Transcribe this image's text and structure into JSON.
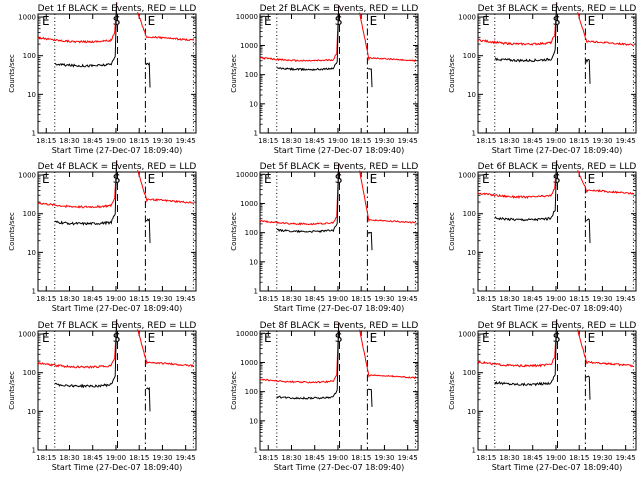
{
  "chart_data": [
    {
      "type": "line",
      "title": "Det 1f BLACK = Events, RED = LLD",
      "xlabel": "Start Time (27-Dec-07 18:09:40)",
      "ylabel": "Counts/sec",
      "xticks": [
        "18:15",
        "18:30",
        "18:45",
        "19:00",
        "18:15",
        "19:30",
        "19:45"
      ],
      "yticks": [
        "1",
        "10",
        "100",
        "1000"
      ],
      "ylim": [
        1,
        1200
      ],
      "yscale": "log",
      "markers": [
        "E",
        "S",
        "E"
      ],
      "series": [
        {
          "name": "RED = LLD",
          "color": "#ff0000",
          "pre_level": 230,
          "post_level": 250
        },
        {
          "name": "BLACK = Events",
          "color": "#000000",
          "pre_level": 55,
          "post_level": 60
        }
      ]
    },
    {
      "type": "line",
      "title": "Det 2f BLACK = Events, RED = LLD",
      "xlabel": "Start Time (27-Dec-07 18:09:40)",
      "ylabel": "Counts/sec",
      "xticks": [
        "18:15",
        "18:30",
        "18:45",
        "19:00",
        "18:15",
        "19:30",
        "19:45"
      ],
      "yticks": [
        "1",
        "10",
        "100",
        "1000",
        "10000"
      ],
      "ylim": [
        1,
        12000
      ],
      "yscale": "log",
      "markers": [
        "E",
        "S",
        "E"
      ],
      "series": [
        {
          "name": "RED = LLD",
          "color": "#ff0000",
          "pre_level": 300,
          "post_level": 300
        },
        {
          "name": "BLACK = Events",
          "color": "#000000",
          "pre_level": 150,
          "post_level": 150
        }
      ]
    },
    {
      "type": "line",
      "title": "Det 3f BLACK = Events, RED = LLD",
      "xlabel": "Start Time (27-Dec-07 18:09:40)",
      "ylabel": "Counts/sec",
      "xticks": [
        "18:15",
        "18:30",
        "18:45",
        "19:00",
        "18:15",
        "19:30",
        "19:45"
      ],
      "yticks": [
        "1",
        "10",
        "100",
        "1000"
      ],
      "ylim": [
        1,
        1200
      ],
      "yscale": "log",
      "markers": [
        "E",
        "S",
        "E"
      ],
      "series": [
        {
          "name": "RED = LLD",
          "color": "#ff0000",
          "pre_level": 200,
          "post_level": 190
        },
        {
          "name": "BLACK = Events",
          "color": "#000000",
          "pre_level": 75,
          "post_level": 75
        }
      ]
    },
    {
      "type": "line",
      "title": "Det 4f BLACK = Events, RED = LLD",
      "xlabel": "Start Time (27-Dec-07 18:09:40)",
      "ylabel": "Counts/sec",
      "xticks": [
        "18:15",
        "18:30",
        "18:45",
        "19:00",
        "18:15",
        "19:30",
        "19:45"
      ],
      "yticks": [
        "1",
        "10",
        "100",
        "1000"
      ],
      "ylim": [
        1,
        1200
      ],
      "yscale": "log",
      "markers": [
        "E",
        "S",
        "E"
      ],
      "series": [
        {
          "name": "RED = LLD",
          "color": "#ff0000",
          "pre_level": 150,
          "post_level": 190
        },
        {
          "name": "BLACK = Events",
          "color": "#000000",
          "pre_level": 55,
          "post_level": 70
        }
      ]
    },
    {
      "type": "line",
      "title": "Det 5f BLACK = Events, RED = LLD",
      "xlabel": "Start Time (27-Dec-07 18:09:40)",
      "ylabel": "Counts/sec",
      "xticks": [
        "18:15",
        "18:30",
        "18:45",
        "19:00",
        "18:15",
        "19:30",
        "19:45"
      ],
      "yticks": [
        "1",
        "10",
        "100",
        "1000",
        "10000"
      ],
      "ylim": [
        1,
        12000
      ],
      "yscale": "log",
      "markers": [
        "E",
        "S",
        "E"
      ],
      "series": [
        {
          "name": "RED = LLD",
          "color": "#ff0000",
          "pre_level": 200,
          "post_level": 220
        },
        {
          "name": "BLACK = Events",
          "color": "#000000",
          "pre_level": 110,
          "post_level": 100
        }
      ]
    },
    {
      "type": "line",
      "title": "Det 6f BLACK = Events, RED = LLD",
      "xlabel": "Start Time (27-Dec-07 18:09:40)",
      "ylabel": "Counts/sec",
      "xticks": [
        "18:15",
        "18:30",
        "18:45",
        "19:00",
        "18:15",
        "19:30",
        "19:45"
      ],
      "yticks": [
        "1",
        "10",
        "100",
        "1000"
      ],
      "ylim": [
        1,
        1200
      ],
      "yscale": "log",
      "markers": [
        "E",
        "S",
        "E"
      ],
      "series": [
        {
          "name": "RED = LLD",
          "color": "#ff0000",
          "pre_level": 270,
          "post_level": 330
        },
        {
          "name": "BLACK = Events",
          "color": "#000000",
          "pre_level": 70,
          "post_level": 70
        }
      ]
    },
    {
      "type": "line",
      "title": "Det 7f BLACK = Events, RED = LLD",
      "xlabel": "Start Time (27-Dec-07 18:09:40)",
      "ylabel": "Counts/sec",
      "xticks": [
        "18:15",
        "18:30",
        "18:45",
        "19:00",
        "18:15",
        "19:30",
        "19:45"
      ],
      "yticks": [
        "1",
        "10",
        "100",
        "1000"
      ],
      "ylim": [
        1,
        1200
      ],
      "yscale": "log",
      "markers": [
        "E",
        "S",
        "E"
      ],
      "series": [
        {
          "name": "RED = LLD",
          "color": "#ff0000",
          "pre_level": 140,
          "post_level": 150
        },
        {
          "name": "BLACK = Events",
          "color": "#000000",
          "pre_level": 45,
          "post_level": 40
        }
      ]
    },
    {
      "type": "line",
      "title": "Det 8f BLACK = Events, RED = LLD",
      "xlabel": "Start Time (27-Dec-07 18:09:40)",
      "ylabel": "Counts/sec",
      "xticks": [
        "18:15",
        "18:30",
        "18:45",
        "19:00",
        "18:15",
        "19:30",
        "19:45"
      ],
      "yticks": [
        "1",
        "10",
        "100",
        "1000",
        "10000"
      ],
      "ylim": [
        1,
        12000
      ],
      "yscale": "log",
      "markers": [
        "E",
        "S",
        "E"
      ],
      "series": [
        {
          "name": "RED = LLD",
          "color": "#ff0000",
          "pre_level": 210,
          "post_level": 300
        },
        {
          "name": "BLACK = Events",
          "color": "#000000",
          "pre_level": 60,
          "post_level": 120
        }
      ]
    },
    {
      "type": "line",
      "title": "Det 9f BLACK = Events, RED = LLD",
      "xlabel": "Start Time (27-Dec-07 18:09:40)",
      "ylabel": "Counts/sec",
      "xticks": [
        "18:15",
        "18:30",
        "18:45",
        "19:00",
        "18:15",
        "19:30",
        "19:45"
      ],
      "yticks": [
        "1",
        "10",
        "100",
        "1000"
      ],
      "ylim": [
        1,
        1200
      ],
      "yscale": "log",
      "markers": [
        "E",
        "S",
        "E"
      ],
      "series": [
        {
          "name": "RED = LLD",
          "color": "#ff0000",
          "pre_level": 150,
          "post_level": 150
        },
        {
          "name": "BLACK = Events",
          "color": "#000000",
          "pre_level": 50,
          "post_level": 80
        }
      ]
    }
  ]
}
